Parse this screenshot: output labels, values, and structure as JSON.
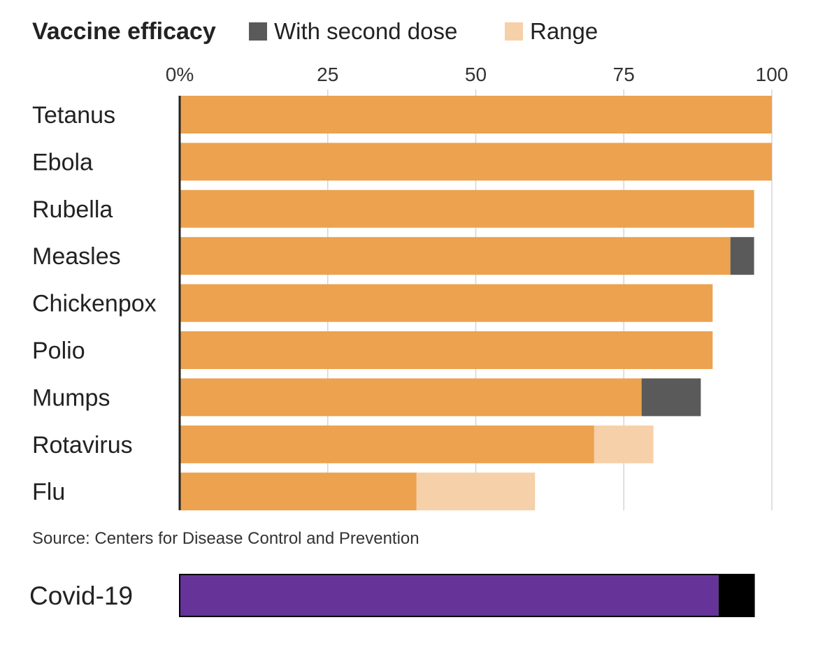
{
  "chart_data": {
    "type": "bar",
    "orientation": "horizontal",
    "stacked": true,
    "title": "Vaccine efficacy",
    "legend": {
      "placement": "top",
      "entries": [
        {
          "name": "With second dose",
          "color": "#5a5a5a"
        },
        {
          "name": "Range",
          "color": "#f5d0a9"
        }
      ]
    },
    "xlim": [
      0,
      100
    ],
    "x_ticks": [
      0,
      25,
      50,
      75,
      100
    ],
    "x_tick_labels": [
      "0%",
      "25",
      "50",
      "75",
      "100"
    ],
    "grid": true,
    "categories": [
      "Tetanus",
      "Ebola",
      "Rubella",
      "Measles",
      "Chickenpox",
      "Polio",
      "Mumps",
      "Rotavirus",
      "Flu"
    ],
    "series": [
      {
        "key": "base",
        "values": [
          100,
          100,
          97,
          93,
          90,
          90,
          78,
          70,
          40
        ],
        "color": "#eca24f"
      },
      {
        "key": "second_dose",
        "values": [
          0,
          0,
          0,
          4,
          0,
          0,
          10,
          0,
          0
        ],
        "color": "#5a5a5a"
      },
      {
        "key": "range",
        "values": [
          0,
          0,
          0,
          0,
          0,
          0,
          0,
          10,
          20
        ],
        "color": "#f5d0a9"
      }
    ],
    "source": "Source: Centers for Disease Control and Prevention",
    "annotation_bar": {
      "label": "Covid-19",
      "base_value": 91,
      "extra_value": 6,
      "base_color": "#663399",
      "extra_color": "#000000"
    }
  }
}
